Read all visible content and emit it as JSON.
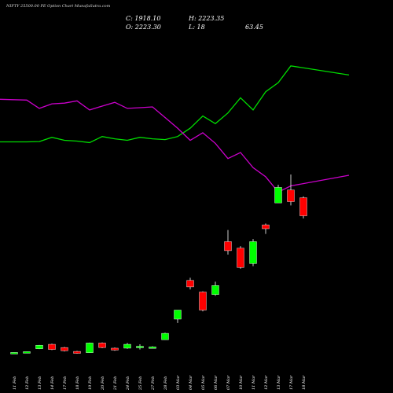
{
  "header": {
    "title": "NIFTY 25500.00 PE Option  Chart MunafaSutra.com",
    "close_label": "C: 1918.10",
    "open_label": "O: 2223.30",
    "high_label": "H: 2223.35",
    "low_label": "L: 18",
    "extra_value": "63.45"
  },
  "colors": {
    "background": "#000000",
    "up": "#00ff00",
    "down": "#ff0000",
    "line_green": "#00dd00",
    "line_magenta": "#cc00cc",
    "wick": "#ffffff"
  },
  "chart_data": {
    "type": "candlestick",
    "title": "NIFTY 25500.00 PE Option  Chart MunafaSutra.com",
    "categories": [
      "11 Feb",
      "12 Feb",
      "13 Feb",
      "14 Feb",
      "17 Feb",
      "18 Feb",
      "19 Feb",
      "20 Feb",
      "21 Feb",
      "24 Feb",
      "25 Feb",
      "27 Feb",
      "28 Feb",
      "03 Mar",
      "04 Mar",
      "05 Mar",
      "06 Mar",
      "07 Mar",
      "10 Mar",
      "11 Mar",
      "12 Mar",
      "13 Mar",
      "17 Mar",
      "18 Mar"
    ],
    "candles": [
      {
        "o": 15,
        "h": 20,
        "l": 12,
        "c": 22,
        "dir": "up"
      },
      {
        "o": 22,
        "h": 28,
        "l": 20,
        "c": 28,
        "dir": "up"
      },
      {
        "o": 50,
        "h": 80,
        "l": 48,
        "c": 78,
        "dir": "up"
      },
      {
        "o": 85,
        "h": 90,
        "l": 40,
        "c": 45,
        "dir": "down"
      },
      {
        "o": 60,
        "h": 65,
        "l": 30,
        "c": 35,
        "dir": "down"
      },
      {
        "o": 30,
        "h": 34,
        "l": 12,
        "c": 15,
        "dir": "down"
      },
      {
        "o": 20,
        "h": 98,
        "l": 18,
        "c": 95,
        "dir": "up"
      },
      {
        "o": 95,
        "h": 100,
        "l": 55,
        "c": 60,
        "dir": "down"
      },
      {
        "o": 55,
        "h": 60,
        "l": 35,
        "c": 40,
        "dir": "down"
      },
      {
        "o": 55,
        "h": 95,
        "l": 50,
        "c": 85,
        "dir": "up"
      },
      {
        "o": 65,
        "h": 85,
        "l": 45,
        "c": 70,
        "dir": "up"
      },
      {
        "o": 60,
        "h": 70,
        "l": 55,
        "c": 65,
        "dir": "up"
      },
      {
        "o": 120,
        "h": 175,
        "l": 120,
        "c": 170,
        "dir": "up"
      },
      {
        "o": 280,
        "h": 340,
        "l": 250,
        "c": 350,
        "dir": "up"
      },
      {
        "o": 580,
        "h": 600,
        "l": 510,
        "c": 530,
        "dir": "down"
      },
      {
        "o": 490,
        "h": 495,
        "l": 340,
        "c": 350,
        "dir": "down"
      },
      {
        "o": 470,
        "h": 570,
        "l": 460,
        "c": 540,
        "dir": "up"
      },
      {
        "o": 880,
        "h": 970,
        "l": 780,
        "c": 810,
        "dir": "down"
      },
      {
        "o": 830,
        "h": 845,
        "l": 670,
        "c": 680,
        "dir": "down"
      },
      {
        "o": 710,
        "h": 900,
        "l": 690,
        "c": 880,
        "dir": "up"
      },
      {
        "o": 1010,
        "h": 1020,
        "l": 940,
        "c": 980,
        "dir": "down"
      },
      {
        "o": 1180,
        "h": 1320,
        "l": 1180,
        "c": 1300,
        "dir": "up"
      },
      {
        "o": 1280,
        "h": 1400,
        "l": 1160,
        "c": 1190,
        "dir": "down"
      },
      {
        "o": 1220,
        "h": 1230,
        "l": 1060,
        "c": 1080,
        "dir": "down"
      }
    ],
    "series": [
      {
        "values": [
          1870,
          1870,
          1872,
          1900,
          1880,
          1875,
          1865,
          1905,
          1890,
          1880,
          1900,
          1890,
          1885,
          1905,
          1960,
          2040,
          1990,
          2060,
          2160,
          2080,
          2200,
          2260,
          2370,
          2310
        ]
      },
      {
        "values": [
          2150,
          2145,
          2090,
          2120,
          2125,
          2140,
          2080,
          2105,
          2130,
          2090,
          2095,
          2100,
          2030,
          1960,
          1880,
          1930,
          1860,
          1760,
          1800,
          1700,
          1640,
          1540,
          1580,
          1650
        ]
      }
    ],
    "ylim": [
      0,
      1400
    ],
    "xlabel": "",
    "ylabel": ""
  }
}
